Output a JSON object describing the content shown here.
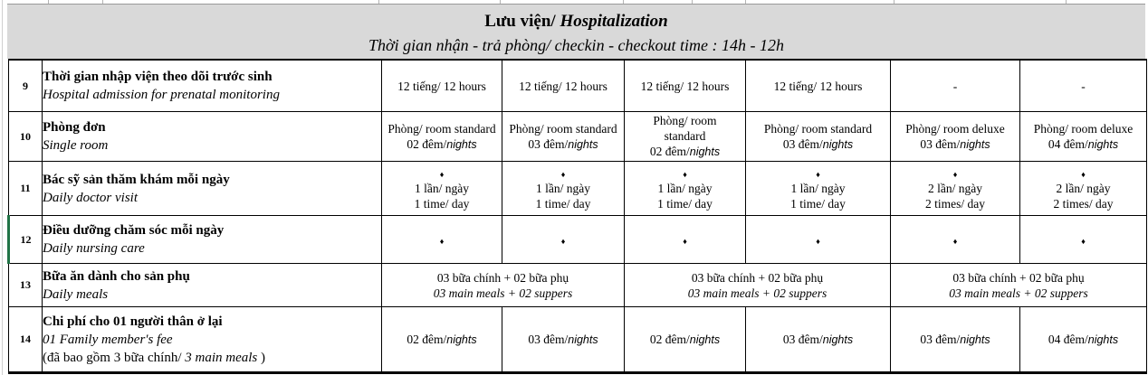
{
  "colors": {
    "header_bg": "#d9d9d9",
    "selection_green": "#217346",
    "grid_line": "#000000"
  },
  "glyphs": {
    "diamond": "♦"
  },
  "sheet": {
    "header": {
      "title_prefix": "Lưu viện/",
      "title_italic": "Hospitalization",
      "subtitle": "Thời gian nhận - trả phòng/ checkin - checkout time : 14h - 12h"
    },
    "rows": [
      {
        "num": "9",
        "desc": [
          [
            [
              "b",
              "Thời gian nhập viện theo dõi trước sinh"
            ]
          ],
          [
            [
              "i",
              "Hospital admission for prenatal monitoring"
            ]
          ]
        ],
        "cells": [
          {
            "span": 1,
            "lines": [
              [
                [
                  "r",
                  "12 tiếng/ 12 hours"
                ]
              ]
            ]
          },
          {
            "span": 1,
            "lines": [
              [
                [
                  "r",
                  "12 tiếng/ 12 hours"
                ]
              ]
            ]
          },
          {
            "span": 1,
            "lines": [
              [
                [
                  "r",
                  "12 tiếng/ 12 hours"
                ]
              ]
            ]
          },
          {
            "span": 1,
            "lines": [
              [
                [
                  "r",
                  "12 tiếng/ 12 hours"
                ]
              ]
            ]
          },
          {
            "span": 1,
            "lines": [
              [
                [
                  "r",
                  "-"
                ]
              ]
            ]
          },
          {
            "span": 1,
            "lines": [
              [
                [
                  "r",
                  "-"
                ]
              ]
            ]
          }
        ]
      },
      {
        "num": "10",
        "desc": [
          [
            [
              "b",
              "Phòng đơn"
            ]
          ],
          [
            [
              "i",
              "Single room"
            ]
          ]
        ],
        "cells": [
          {
            "span": 1,
            "lines": [
              [
                [
                  "r",
                  "Phòng/ room standard"
                ]
              ],
              [
                [
                  "r",
                  "02 đêm/"
                ],
                [
                  "is",
                  "nights"
                ]
              ]
            ]
          },
          {
            "span": 1,
            "lines": [
              [
                [
                  "r",
                  "Phòng/ room standard"
                ]
              ],
              [
                [
                  "r",
                  "03 đêm/"
                ],
                [
                  "is",
                  "nights"
                ]
              ]
            ]
          },
          {
            "span": 1,
            "lines": [
              [
                [
                  "r",
                  "Phòng/ room"
                ]
              ],
              [
                [
                  "r",
                  "standard"
                ]
              ],
              [
                [
                  "r",
                  "02 đêm/"
                ],
                [
                  "is",
                  "nights"
                ]
              ]
            ]
          },
          {
            "span": 1,
            "lines": [
              [
                [
                  "r",
                  "Phòng/ room standard"
                ]
              ],
              [
                [
                  "r",
                  "03 đêm/"
                ],
                [
                  "is",
                  "nights"
                ]
              ]
            ]
          },
          {
            "span": 1,
            "lines": [
              [
                [
                  "r",
                  "Phòng/ room deluxe"
                ]
              ],
              [
                [
                  "r",
                  "03 đêm/"
                ],
                [
                  "is",
                  "nights"
                ]
              ]
            ]
          },
          {
            "span": 1,
            "lines": [
              [
                [
                  "r",
                  "Phòng/ room deluxe"
                ]
              ],
              [
                [
                  "r",
                  "04 đêm/"
                ],
                [
                  "is",
                  "nights"
                ]
              ]
            ]
          }
        ]
      },
      {
        "num": "11",
        "desc": [
          [
            [
              "b",
              "Bác sỹ sản thăm khám mỗi ngày"
            ]
          ],
          [
            [
              "i",
              "Daily doctor visit"
            ]
          ]
        ],
        "cells": [
          {
            "span": 1,
            "lines": [
              [
                [
                  "d",
                  "♦"
                ]
              ],
              [
                [
                  "r",
                  "1 lần/ ngày"
                ]
              ],
              [
                [
                  "r",
                  "1 time/ day"
                ]
              ]
            ]
          },
          {
            "span": 1,
            "lines": [
              [
                [
                  "d",
                  "♦"
                ]
              ],
              [
                [
                  "r",
                  "1 lần/ ngày"
                ]
              ],
              [
                [
                  "r",
                  "1 time/ day"
                ]
              ]
            ]
          },
          {
            "span": 1,
            "lines": [
              [
                [
                  "d",
                  "♦"
                ]
              ],
              [
                [
                  "r",
                  "1 lần/ ngày"
                ]
              ],
              [
                [
                  "r",
                  "1 time/ day"
                ]
              ]
            ]
          },
          {
            "span": 1,
            "lines": [
              [
                [
                  "d",
                  "♦"
                ]
              ],
              [
                [
                  "r",
                  "1 lần/ ngày"
                ]
              ],
              [
                [
                  "r",
                  "1 time/ day"
                ]
              ]
            ]
          },
          {
            "span": 1,
            "lines": [
              [
                [
                  "d",
                  "♦"
                ]
              ],
              [
                [
                  "r",
                  "2 lần/ ngày"
                ]
              ],
              [
                [
                  "r",
                  "2 times/ day"
                ]
              ]
            ]
          },
          {
            "span": 1,
            "lines": [
              [
                [
                  "d",
                  "♦"
                ]
              ],
              [
                [
                  "r",
                  "2 lần/ ngày"
                ]
              ],
              [
                [
                  "r",
                  "2 times/ day"
                ]
              ]
            ]
          }
        ]
      },
      {
        "num": "12",
        "selected": true,
        "desc": [
          [
            [
              "b",
              "Điều dưỡng chăm sóc mỗi ngày"
            ]
          ],
          [
            [
              "i",
              "Daily nursing care"
            ]
          ]
        ],
        "cells": [
          {
            "span": 1,
            "lines": [
              [
                [
                  "d",
                  "♦"
                ]
              ]
            ]
          },
          {
            "span": 1,
            "lines": [
              [
                [
                  "d",
                  "♦"
                ]
              ]
            ]
          },
          {
            "span": 1,
            "lines": [
              [
                [
                  "d",
                  "♦"
                ]
              ]
            ]
          },
          {
            "span": 1,
            "lines": [
              [
                [
                  "d",
                  "♦"
                ]
              ]
            ]
          },
          {
            "span": 1,
            "lines": [
              [
                [
                  "d",
                  "♦"
                ]
              ]
            ]
          },
          {
            "span": 1,
            "lines": [
              [
                [
                  "d",
                  "♦"
                ]
              ]
            ]
          }
        ]
      },
      {
        "num": "13",
        "desc": [
          [
            [
              "b",
              "Bữa ăn dành cho sản phụ"
            ]
          ],
          [
            [
              "i",
              "Daily meals"
            ]
          ]
        ],
        "cells": [
          {
            "span": 2,
            "lines": [
              [
                [
                  "r",
                  "03 bữa chính + 02 bữa phụ"
                ]
              ],
              [
                [
                  "i",
                  "03 main meals + 02 suppers"
                ]
              ]
            ]
          },
          {
            "span": 2,
            "lines": [
              [
                [
                  "r",
                  "03 bữa chính + 02 bữa phụ"
                ]
              ],
              [
                [
                  "i",
                  "03 main meals + 02 suppers"
                ]
              ]
            ]
          },
          {
            "span": 2,
            "lines": [
              [
                [
                  "r",
                  "03 bữa chính + 02 bữa phụ"
                ]
              ],
              [
                [
                  "i",
                  "03 main meals + 02 suppers"
                ]
              ]
            ]
          }
        ]
      },
      {
        "num": "14",
        "desc": [
          [
            [
              "b",
              "Chi phí cho 01 người thân ở lại"
            ]
          ],
          [
            [
              "i",
              "01 Family member's fee"
            ]
          ],
          [
            [
              "r",
              "(đã bao gồm 3 bữa chính/ "
            ],
            [
              "i",
              "3 main meals"
            ],
            [
              "r",
              " )"
            ]
          ]
        ],
        "cells": [
          {
            "span": 1,
            "lines": [
              [
                [
                  "r",
                  "02 đêm/"
                ],
                [
                  "is",
                  "nights"
                ]
              ]
            ]
          },
          {
            "span": 1,
            "lines": [
              [
                [
                  "r",
                  "03 đêm/"
                ],
                [
                  "is",
                  "nights"
                ]
              ]
            ]
          },
          {
            "span": 1,
            "lines": [
              [
                [
                  "r",
                  "02 đêm/"
                ],
                [
                  "is",
                  "nights"
                ]
              ]
            ]
          },
          {
            "span": 1,
            "lines": [
              [
                [
                  "r",
                  "03 đêm/"
                ],
                [
                  "is",
                  "nights"
                ]
              ]
            ]
          },
          {
            "span": 1,
            "lines": [
              [
                [
                  "r",
                  "03 đêm/"
                ],
                [
                  "is",
                  "nights"
                ]
              ]
            ]
          },
          {
            "span": 1,
            "lines": [
              [
                [
                  "r",
                  "04 đêm/"
                ],
                [
                  "is",
                  "nights"
                ]
              ]
            ]
          }
        ]
      }
    ]
  }
}
